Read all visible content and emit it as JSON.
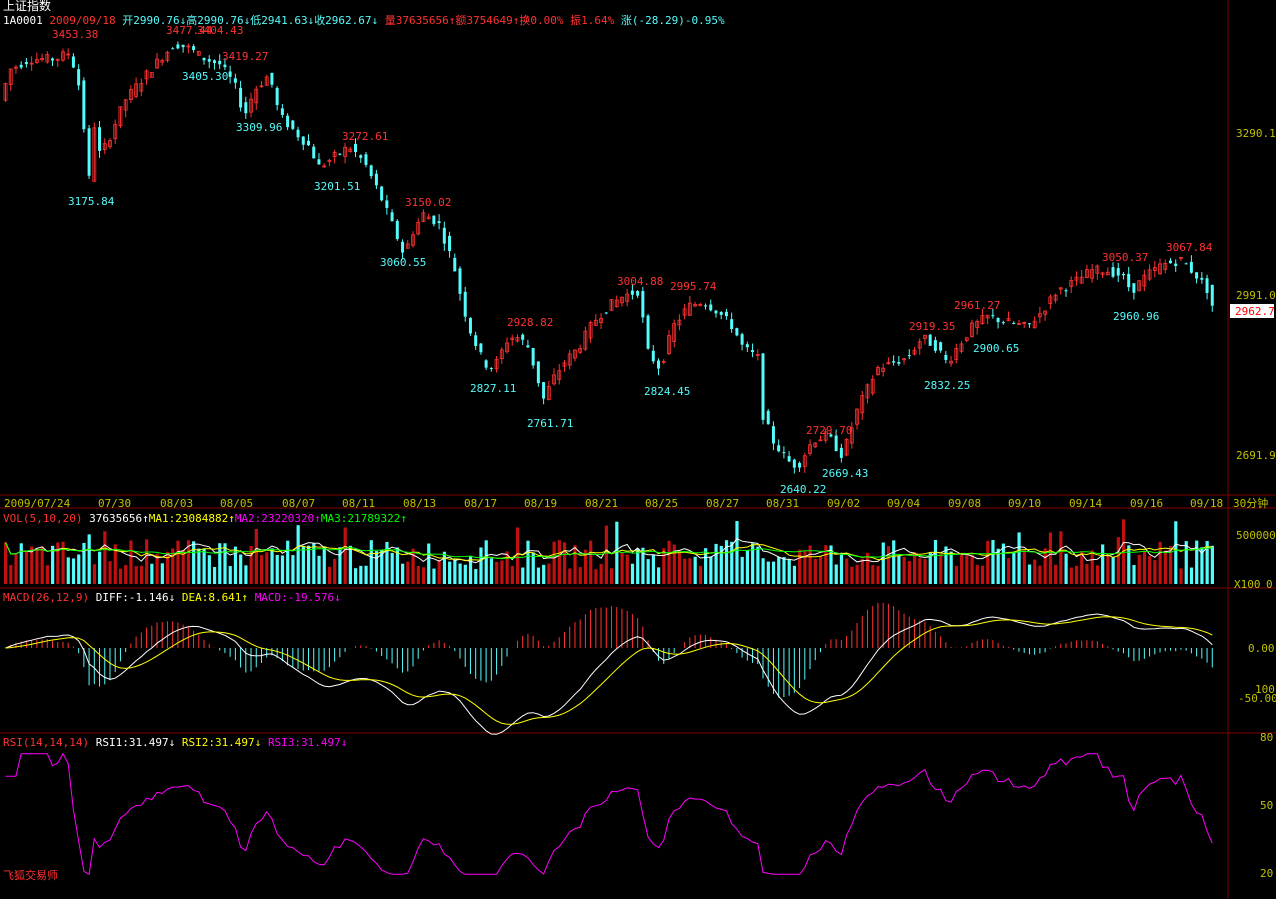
{
  "header": {
    "title": "上证指数",
    "code": "1A0001",
    "date": "2009/09/18",
    "open": "开2990.76↓",
    "high": "高2990.76↓",
    "low": "低2941.63↓",
    "close": "收2962.67↓",
    "volume": "量37635656↑",
    "amount": "额3754649↑",
    "turnover": "换0.00%",
    "amplitude": "振1.64%",
    "change": "涨(-28.29)-0.95%"
  },
  "colors": {
    "up": "#ff3232",
    "down": "#54fcfc",
    "grid": "#800000",
    "axis_text": "#c0c000",
    "ma1": "#ffffff",
    "ma2": "#ffff00",
    "ma3": "#00ff00",
    "rsi": "#ff00ff"
  },
  "chart_data": {
    "type": "candlestick",
    "timeframe": "30分钟",
    "y_ticks": [
      "3290.1",
      "2991.0",
      "2691.9"
    ],
    "current_price_label": "2962.7",
    "x_ticks": [
      "2009/07/24",
      "07/30",
      "08/03",
      "08/05",
      "08/07",
      "08/11",
      "08/13",
      "08/17",
      "08/19",
      "08/21",
      "08/25",
      "08/27",
      "08/31",
      "09/02",
      "09/04",
      "09/08",
      "09/10",
      "09/14",
      "09/16",
      "09/18"
    ],
    "swing_points": [
      {
        "label": "3453.38",
        "type": "high"
      },
      {
        "label": "3477.44",
        "type": "high"
      },
      {
        "label": "3404.43",
        "type": "high"
      },
      {
        "label": "3419.27",
        "type": "high"
      },
      {
        "label": "3405.30",
        "type": "low"
      },
      {
        "label": "3309.96",
        "type": "low"
      },
      {
        "label": "3272.61",
        "type": "high"
      },
      {
        "label": "3201.51",
        "type": "low"
      },
      {
        "label": "3175.84",
        "type": "low"
      },
      {
        "label": "3150.02",
        "type": "high"
      },
      {
        "label": "3060.55",
        "type": "low"
      },
      {
        "label": "2928.82",
        "type": "high"
      },
      {
        "label": "2827.11",
        "type": "low"
      },
      {
        "label": "2761.71",
        "type": "low"
      },
      {
        "label": "3004.88",
        "type": "high"
      },
      {
        "label": "2995.74",
        "type": "high"
      },
      {
        "label": "2824.45",
        "type": "low"
      },
      {
        "label": "2729.70",
        "type": "high"
      },
      {
        "label": "2640.22",
        "type": "low"
      },
      {
        "label": "2669.43",
        "type": "low"
      },
      {
        "label": "2919.35",
        "type": "high"
      },
      {
        "label": "2832.25",
        "type": "low"
      },
      {
        "label": "2961.27",
        "type": "high"
      },
      {
        "label": "2900.65",
        "type": "low"
      },
      {
        "label": "3050.37",
        "type": "high"
      },
      {
        "label": "2960.96",
        "type": "low"
      },
      {
        "label": "3067.84",
        "type": "high"
      }
    ]
  },
  "volume_panel": {
    "label": "VOL(5,10,20)",
    "value": "37635656↑",
    "ma1": "MA1:23084882↑",
    "ma2": "MA2:23220320↑",
    "ma3": "MA3:21789322↑",
    "y_top": "500000",
    "y_unit": "X100",
    "y_zero": "0"
  },
  "macd_panel": {
    "label": "MACD(26,12,9)",
    "diff": "DIFF:-1.146↓",
    "dea": "DEA:8.641↑",
    "macd": "MACD:-19.576↓",
    "y_zero": "0.00",
    "y_100": "100",
    "y_neg": "-50.00"
  },
  "rsi_panel": {
    "label": "RSI(14,14,14)",
    "rsi1": "RSI1:31.497↓",
    "rsi2": "RSI2:31.497↓",
    "rsi3": "RSI3:31.497↓",
    "y_top": "80",
    "y_mid": "50",
    "y_bot": "20"
  },
  "watermark": "飞狐交易师"
}
